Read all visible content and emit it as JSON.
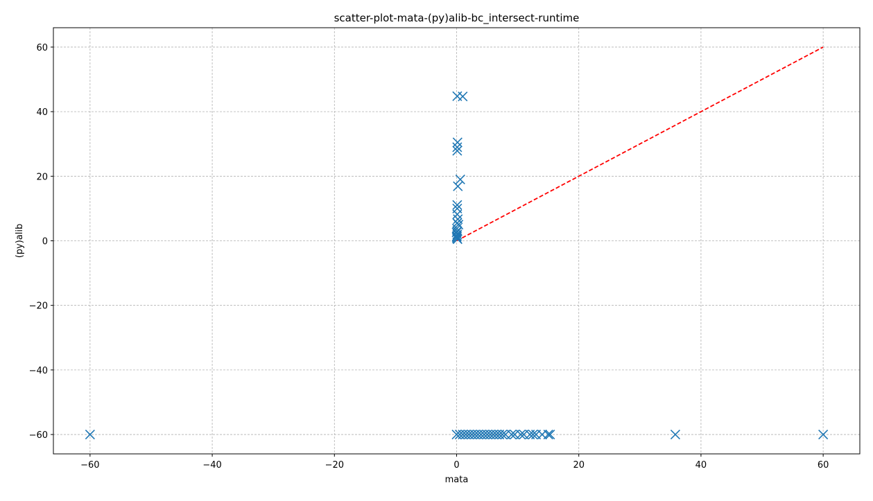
{
  "chart_data": {
    "type": "scatter",
    "title": "scatter-plot-mata-(py)alib-bc_intersect-runtime",
    "xlabel": "mata",
    "ylabel": "(py)alib",
    "xlim": [
      -66,
      66
    ],
    "ylim": [
      -66,
      66
    ],
    "xticks": [
      -60,
      -40,
      -20,
      0,
      20,
      40,
      60
    ],
    "yticks": [
      -60,
      -40,
      -20,
      0,
      20,
      40,
      60
    ],
    "xtick_labels": [
      "−60",
      "−40",
      "−20",
      "0",
      "20",
      "40",
      "60"
    ],
    "ytick_labels": [
      "−60",
      "−40",
      "−20",
      "0",
      "20",
      "40",
      "60"
    ],
    "grid": true,
    "marker": "x",
    "colors": {
      "points": "#1f77b4",
      "reference_line": "#ff0000",
      "grid": "#b0b0b0",
      "axes": "#000000"
    },
    "reference_line": {
      "style": "dashed",
      "x": [
        0,
        60
      ],
      "y": [
        0,
        60
      ]
    },
    "points": {
      "x": [
        0.1,
        1.0,
        0.15,
        0.1,
        0.1,
        0.6,
        0.2,
        0.1,
        0.1,
        0.1,
        0.2,
        0.1,
        0.3,
        0.05,
        0.1,
        0.0,
        0.1,
        0.05,
        0.0,
        0.05,
        0.15,
        -60,
        0.0,
        0.5,
        1.0,
        1.5,
        2.0,
        2.5,
        3.0,
        3.5,
        4.0,
        4.5,
        5.0,
        5.5,
        6.0,
        6.5,
        7.0,
        7.5,
        8.0,
        9.0,
        9.5,
        10.5,
        11.0,
        12.0,
        12.5,
        13.0,
        14.0,
        15.0,
        15.3,
        35.8,
        60
      ],
      "y": [
        44.8,
        44.7,
        30.5,
        29.0,
        27.9,
        19.0,
        16.9,
        11.1,
        10.0,
        8.2,
        6.7,
        5.5,
        5.0,
        3.8,
        3.0,
        2.6,
        2.0,
        1.5,
        1.2,
        0.8,
        0.5,
        -60,
        -60,
        -60,
        -60,
        -60,
        -60,
        -60,
        -60,
        -60,
        -60,
        -60,
        -60,
        -60,
        -60,
        -60,
        -60,
        -60,
        -60,
        -60,
        -60,
        -60,
        -60,
        -60,
        -60,
        -60,
        -60,
        -60,
        -60,
        -60,
        -60
      ]
    }
  }
}
